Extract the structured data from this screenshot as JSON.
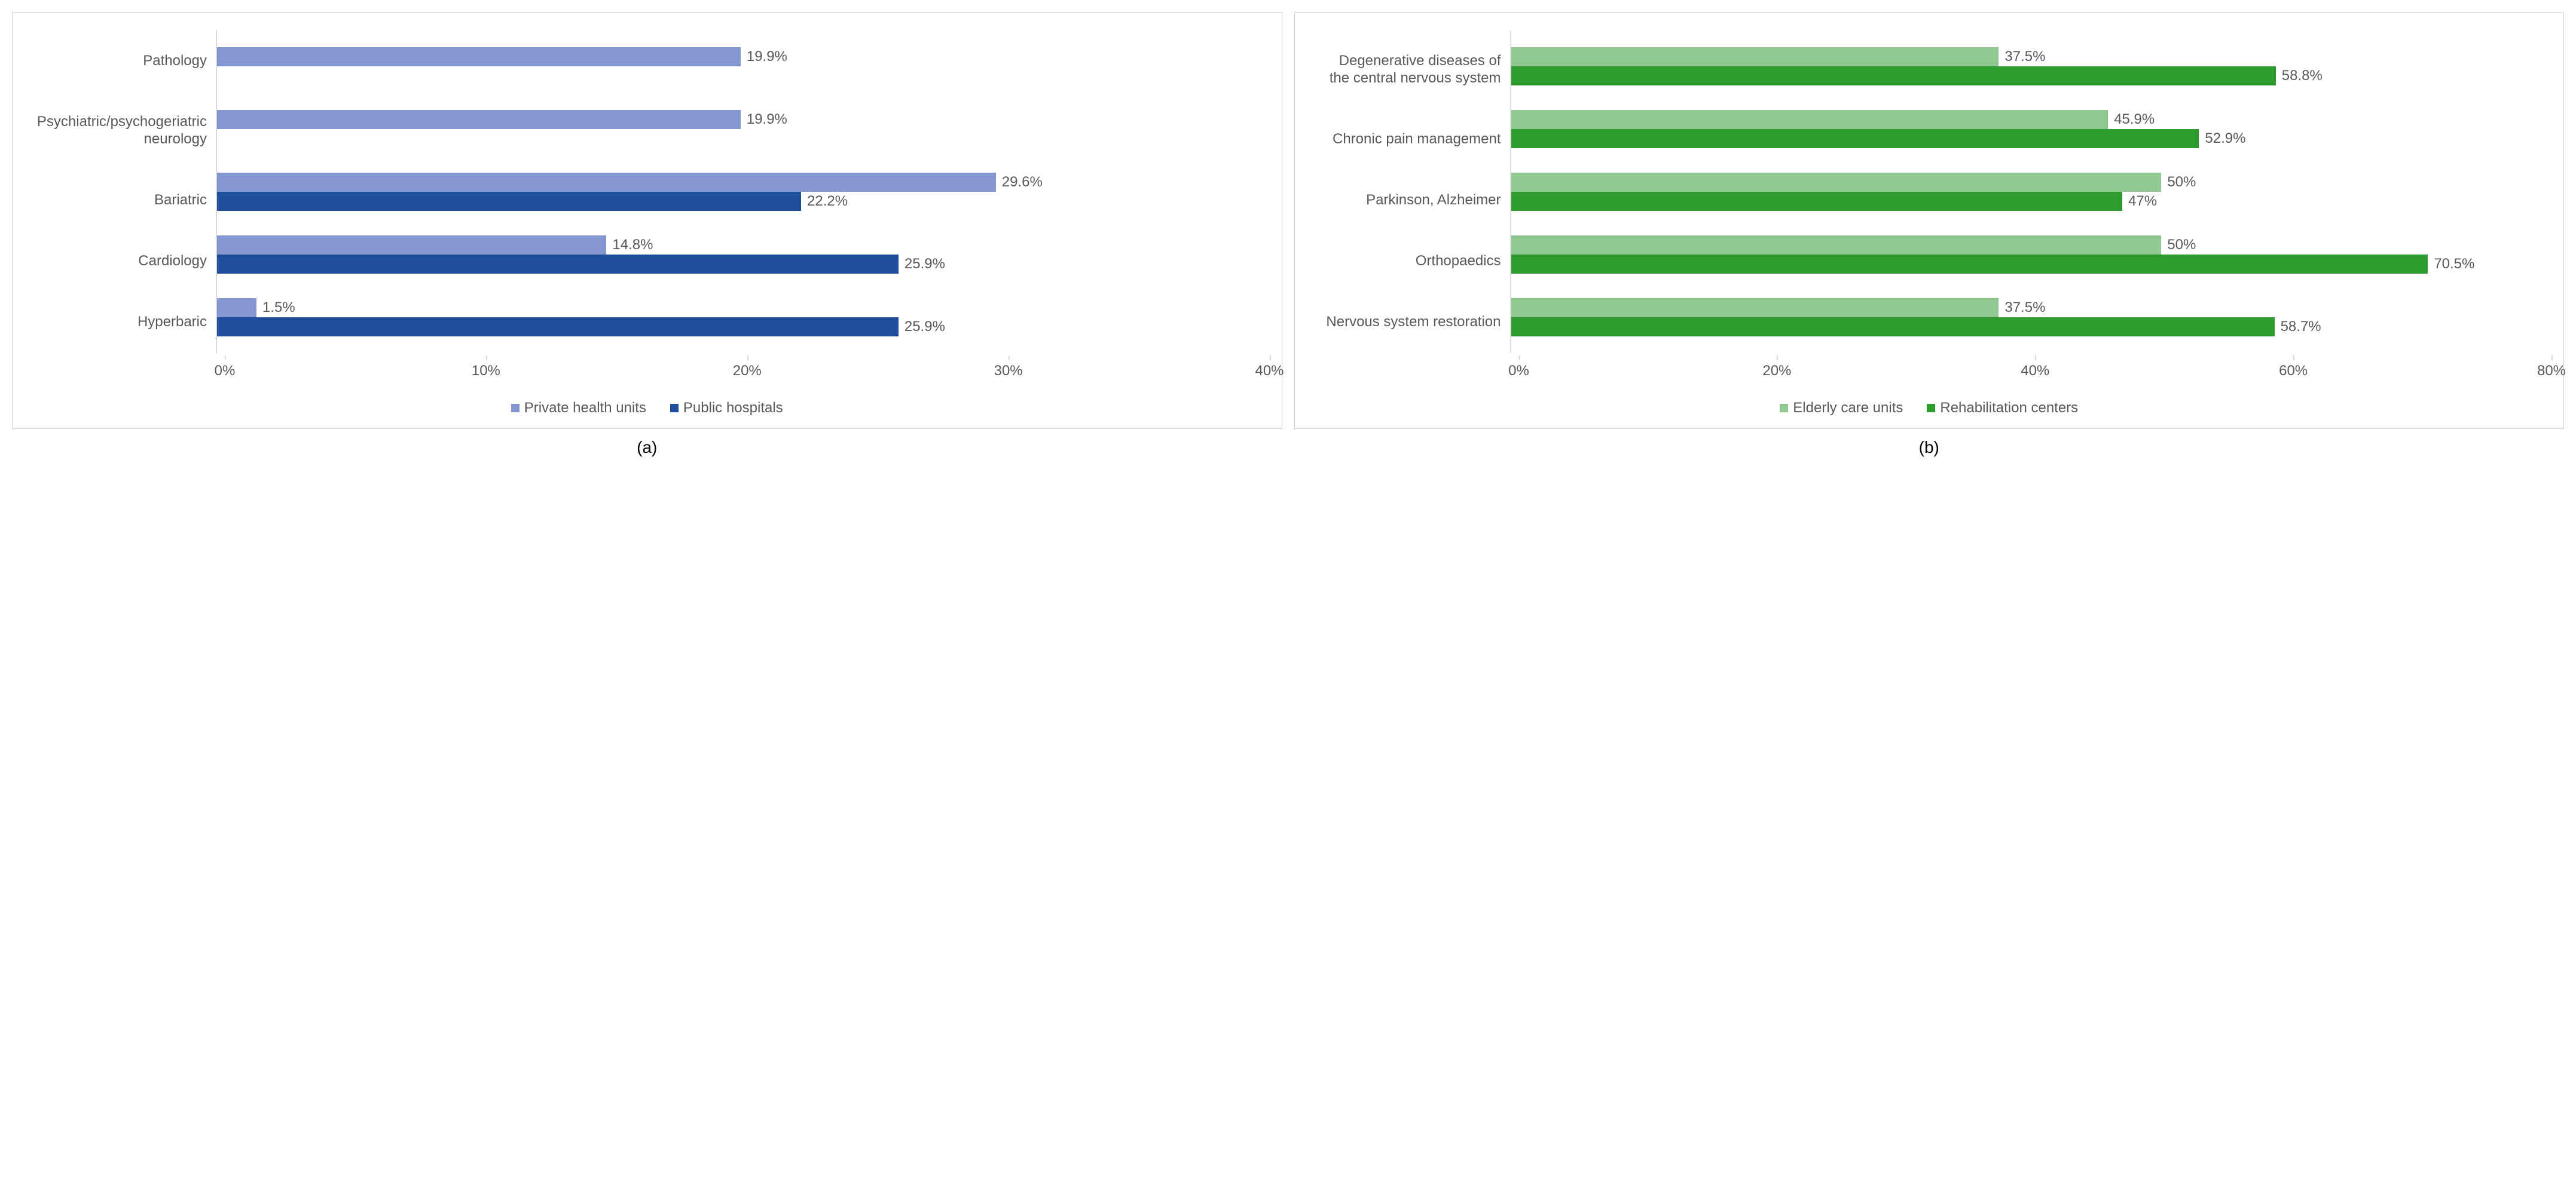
{
  "panelA": {
    "caption": "(a)",
    "type": "bar",
    "orientation": "horizontal",
    "xmax": 40,
    "xticks": [
      0,
      10,
      20,
      30,
      40
    ],
    "xtick_labels": [
      "0%",
      "10%",
      "20%",
      "30%",
      "40%"
    ],
    "y_label_width": 320,
    "series": [
      {
        "name": "Private health units",
        "color": "#8497d0"
      },
      {
        "name": "Public hospitals",
        "color": "#1f4e9c"
      }
    ],
    "categories": [
      {
        "label": "Pathology",
        "values": [
          {
            "series": 0,
            "value": 19.9,
            "label": "19.9%"
          },
          {
            "series": 1,
            "value": 0,
            "label": ""
          }
        ]
      },
      {
        "label": "Psychiatric/psychogeriatric\nneurology",
        "values": [
          {
            "series": 0,
            "value": 19.9,
            "label": "19.9%"
          },
          {
            "series": 1,
            "value": 0,
            "label": ""
          }
        ]
      },
      {
        "label": "Bariatric",
        "values": [
          {
            "series": 0,
            "value": 29.6,
            "label": "29.6%"
          },
          {
            "series": 1,
            "value": 22.2,
            "label": "22.2%"
          }
        ]
      },
      {
        "label": "Cardiology",
        "values": [
          {
            "series": 0,
            "value": 14.8,
            "label": "14.8%"
          },
          {
            "series": 1,
            "value": 25.9,
            "label": "25.9%"
          }
        ]
      },
      {
        "label": "Hyperbaric",
        "values": [
          {
            "series": 0,
            "value": 1.5,
            "label": "1.5%"
          },
          {
            "series": 1,
            "value": 25.9,
            "label": "25.9%"
          }
        ]
      }
    ],
    "background_color": "#ffffff",
    "axis_color": "#d9d9d9",
    "text_color": "#595959",
    "font_size": 24
  },
  "panelB": {
    "caption": "(b)",
    "type": "bar",
    "orientation": "horizontal",
    "xmax": 80,
    "xticks": [
      0,
      20,
      40,
      60,
      80
    ],
    "xtick_labels": [
      "0%",
      "20%",
      "40%",
      "60%",
      "80%"
    ],
    "y_label_width": 340,
    "series": [
      {
        "name": "Elderly care units",
        "color": "#8fc98f"
      },
      {
        "name": "Rehabilitation centers",
        "color": "#2e9b2e"
      }
    ],
    "categories": [
      {
        "label": "Degenerative diseases of\nthe central nervous system",
        "values": [
          {
            "series": 0,
            "value": 37.5,
            "label": "37.5%"
          },
          {
            "series": 1,
            "value": 58.8,
            "label": "58.8%"
          }
        ]
      },
      {
        "label": "Chronic pain management",
        "values": [
          {
            "series": 0,
            "value": 45.9,
            "label": "45.9%"
          },
          {
            "series": 1,
            "value": 52.9,
            "label": "52.9%"
          }
        ]
      },
      {
        "label": "Parkinson, Alzheimer",
        "values": [
          {
            "series": 0,
            "value": 50,
            "label": "50%"
          },
          {
            "series": 1,
            "value": 47,
            "label": "47%"
          }
        ]
      },
      {
        "label": "Orthopaedics",
        "values": [
          {
            "series": 0,
            "value": 50,
            "label": "50%"
          },
          {
            "series": 1,
            "value": 70.5,
            "label": "70.5%"
          }
        ]
      },
      {
        "label": "Nervous system restoration",
        "values": [
          {
            "series": 0,
            "value": 37.5,
            "label": "37.5%"
          },
          {
            "series": 1,
            "value": 58.7,
            "label": "58.7%"
          }
        ]
      }
    ],
    "background_color": "#ffffff",
    "axis_color": "#d9d9d9",
    "text_color": "#595959",
    "font_size": 24
  }
}
